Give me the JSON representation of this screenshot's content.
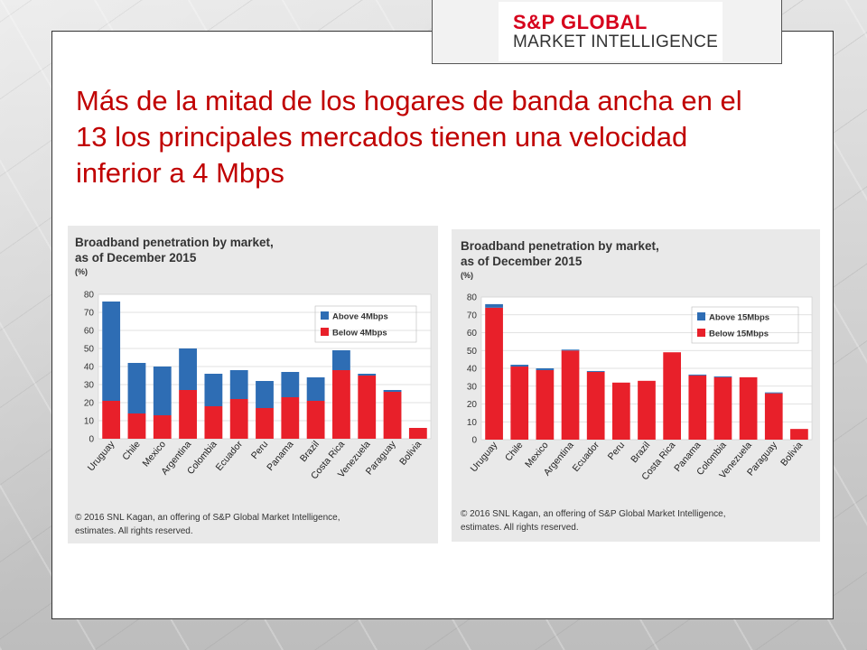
{
  "slide": {
    "title": "Más de la mitad de los hogares de banda ancha en el 13 los principales mercados tienen una velocidad inferior a 4 Mbps"
  },
  "logo": {
    "line1": "S&P GLOBAL",
    "line2": "MARKET INTELLIGENCE",
    "color": "#d6001c"
  },
  "chart_data": [
    {
      "type": "bar",
      "stacked": true,
      "title": "Broadband penetration by market,",
      "subtitle": "as of December 2015",
      "ylabel": "(%)",
      "ylim": [
        0,
        80
      ],
      "yticks": [
        0,
        10,
        20,
        30,
        40,
        50,
        60,
        70,
        80
      ],
      "grid": true,
      "legend": "top-right",
      "categories": [
        "Uruguay",
        "Chile",
        "Mexico",
        "Argentina",
        "Colombia",
        "Ecuador",
        "Peru",
        "Panama",
        "Brazil",
        "Costa Rica",
        "Venezuela",
        "Paraguay",
        "Bolivia"
      ],
      "series": [
        {
          "name": "Below 4Mbps",
          "color": "#e8202a",
          "values": [
            21,
            14,
            13,
            27,
            18,
            22,
            17,
            23,
            21,
            38,
            35,
            26,
            6
          ]
        },
        {
          "name": "Above 4Mbps",
          "color": "#2e6db4",
          "values": [
            55,
            28,
            27,
            23,
            18,
            16,
            15,
            14,
            13,
            11,
            1,
            1,
            0
          ]
        }
      ],
      "footnote": [
        "© 2016 SNL Kagan, an offering of S&P Global Market Intelligence,",
        "estimates. All rights reserved."
      ]
    },
    {
      "type": "bar",
      "stacked": true,
      "title": "Broadband penetration by market,",
      "subtitle": "as of December 2015",
      "ylabel": "(%)",
      "ylim": [
        0,
        80
      ],
      "yticks": [
        0,
        10,
        20,
        30,
        40,
        50,
        60,
        70,
        80
      ],
      "grid": true,
      "legend": "top-right",
      "categories": [
        "Uruguay",
        "Chile",
        "Mexico",
        "Argentina",
        "Ecuador",
        "Peru",
        "Brazil",
        "Costa Rica",
        "Panama",
        "Colombia",
        "Venezuela",
        "Paraguay",
        "Bolivia"
      ],
      "series": [
        {
          "name": "Below 15Mbps",
          "color": "#e8202a",
          "values": [
            74,
            41,
            39,
            50,
            38,
            32,
            33,
            49,
            36,
            35,
            35,
            26,
            6
          ]
        },
        {
          "name": "Above 15Mbps",
          "color": "#2e6db4",
          "values": [
            2,
            1,
            1,
            0.5,
            0.5,
            0,
            0,
            0,
            0.5,
            0.5,
            0,
            0.5,
            0
          ]
        }
      ],
      "footnote": [
        "© 2016 SNL Kagan, an offering of S&P Global Market Intelligence,",
        "estimates. All rights reserved."
      ]
    }
  ]
}
